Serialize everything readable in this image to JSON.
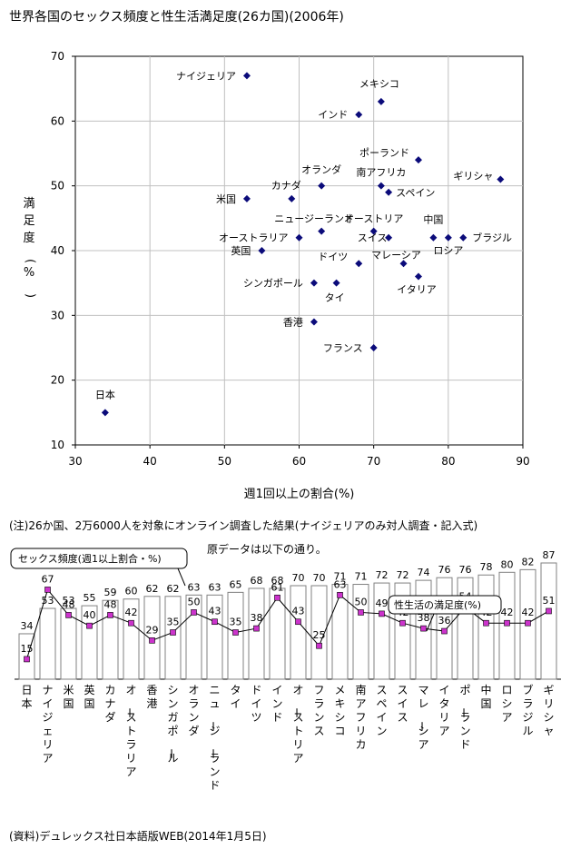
{
  "title": "世界各国のセックス頻度と性生活満足度(26カ国)(2006年)",
  "note_line1": "(注)26か国、2万6000人を対象にオンライン調査した結果(ナイジェリアのみ対人調査・記入式)",
  "note_line2": "原データは以下の通り。",
  "source": "(資料)デュレックス社日本語版WEB(2014年1月5日)",
  "colors": {
    "marker": "#0b0b7a",
    "grid": "#c0c0c0",
    "bar_stroke": "#808080",
    "line": "#000000",
    "line_marker": "#cc33cc"
  },
  "chart_data": [
    {
      "type": "scatter",
      "title": "",
      "xlabel": "週1回以上の割合(%)",
      "ylabel": "満足度(%)",
      "xlim": [
        30,
        90
      ],
      "ylim": [
        10,
        70
      ],
      "xticks": [
        "30",
        "40",
        "50",
        "60",
        "70",
        "80",
        "90"
      ],
      "yticks": [
        "10",
        "20",
        "30",
        "40",
        "50",
        "60",
        "70"
      ],
      "grid": true,
      "points": [
        {
          "label": "日本",
          "x": 34,
          "y": 15
        },
        {
          "label": "ナイジェリア",
          "x": 53,
          "y": 67
        },
        {
          "label": "米国",
          "x": 53,
          "y": 48
        },
        {
          "label": "英国",
          "x": 55,
          "y": 40
        },
        {
          "label": "カナダ",
          "x": 59,
          "y": 48
        },
        {
          "label": "オーストラリア",
          "x": 60,
          "y": 42
        },
        {
          "label": "香港",
          "x": 62,
          "y": 29
        },
        {
          "label": "シンガポール",
          "x": 62,
          "y": 35
        },
        {
          "label": "オランダ",
          "x": 63,
          "y": 50
        },
        {
          "label": "ニュージーランド",
          "x": 63,
          "y": 43
        },
        {
          "label": "タイ",
          "x": 65,
          "y": 35
        },
        {
          "label": "ドイツ",
          "x": 68,
          "y": 38
        },
        {
          "label": "インド",
          "x": 68,
          "y": 61
        },
        {
          "label": "オーストリア",
          "x": 70,
          "y": 43
        },
        {
          "label": "フランス",
          "x": 70,
          "y": 25
        },
        {
          "label": "メキシコ",
          "x": 71,
          "y": 63
        },
        {
          "label": "南アフリカ",
          "x": 71,
          "y": 50
        },
        {
          "label": "スペイン",
          "x": 72,
          "y": 49
        },
        {
          "label": "スイス",
          "x": 72,
          "y": 42
        },
        {
          "label": "マレーシア",
          "x": 74,
          "y": 38
        },
        {
          "label": "イタリア",
          "x": 76,
          "y": 36
        },
        {
          "label": "ポーランド",
          "x": 76,
          "y": 54
        },
        {
          "label": "中国",
          "x": 78,
          "y": 42
        },
        {
          "label": "ロシア",
          "x": 80,
          "y": 42
        },
        {
          "label": "ブラジル",
          "x": 82,
          "y": 42
        },
        {
          "label": "ギリシャ",
          "x": 87,
          "y": 51
        }
      ]
    },
    {
      "type": "bar",
      "categories": [
        "日本",
        "ナイジェリア",
        "米国",
        "英国",
        "カナダ",
        "オーストラリア",
        "香港",
        "シンガポール",
        "オランダ",
        "ニュージーランド",
        "タイ",
        "ドイツ",
        "インド",
        "オーストリア",
        "フランス",
        "メキシコ",
        "南アフリカ",
        "スペイン",
        "スイス",
        "マレーシア",
        "イタリア",
        "ポーランド",
        "中国",
        "ロシア",
        "ブラジル",
        "ギリシャ"
      ],
      "series": [
        {
          "name": "セックス頻度(週1以上割合・%)",
          "type": "bar",
          "values": [
            34,
            53,
            53,
            55,
            59,
            60,
            62,
            62,
            63,
            63,
            65,
            68,
            68,
            70,
            70,
            71,
            71,
            72,
            72,
            74,
            76,
            76,
            78,
            80,
            82,
            87
          ]
        },
        {
          "name": "性生活の満足度(%)",
          "type": "line",
          "values": [
            15,
            67,
            48,
            40,
            48,
            42,
            29,
            35,
            50,
            43,
            35,
            38,
            61,
            43,
            25,
            63,
            50,
            49,
            42,
            38,
            36,
            54,
            42,
            42,
            42,
            51
          ]
        }
      ],
      "ylim": [
        0,
        100
      ]
    }
  ]
}
